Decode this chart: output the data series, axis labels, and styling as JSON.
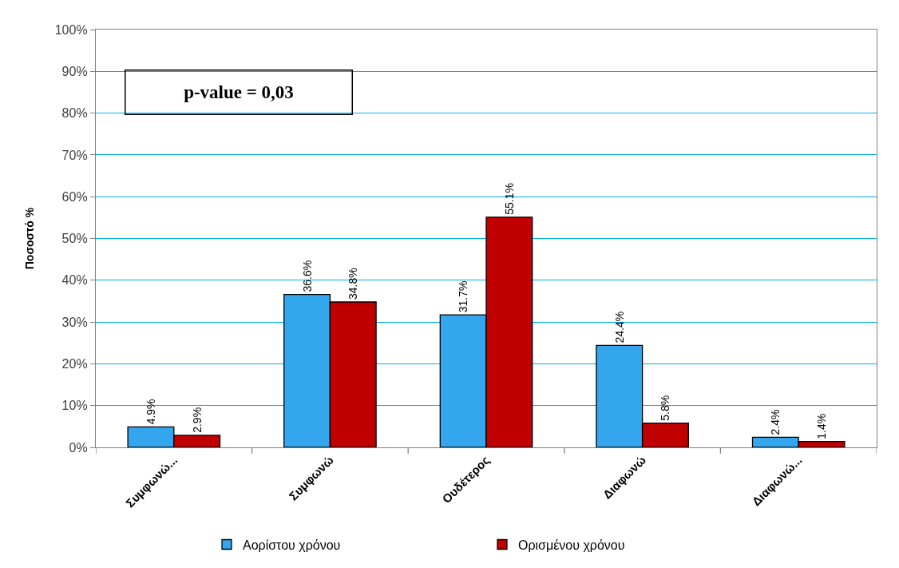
{
  "chart_data": {
    "type": "bar",
    "ylabel": "Ποσοστό %",
    "categories": [
      "Συμφωνώ...",
      "Συμφωνώ",
      "Ουδέτερος",
      "Διαφωνώ",
      "Διαφωνώ..."
    ],
    "series": [
      {
        "name": "Αορίστου χρόνου",
        "color": "#33a6ee",
        "values": [
          4.9,
          36.6,
          31.7,
          24.4,
          2.4
        ],
        "value_labels": [
          "4.9%",
          "36.6%",
          "31.7%",
          "24.4%",
          "2.4%"
        ]
      },
      {
        "name": "Ορισμένου χρόνου",
        "color": "#c00000",
        "values": [
          2.9,
          34.8,
          55.1,
          5.8,
          1.4
        ],
        "value_labels": [
          "2.9%",
          "34.8%",
          "55.1%",
          "5.8%",
          "1.4%"
        ]
      }
    ],
    "ylim": [
      0,
      100
    ],
    "yticks": [
      {
        "value": 0,
        "label": "0%"
      },
      {
        "value": 10,
        "label": "10%"
      },
      {
        "value": 20,
        "label": "20%"
      },
      {
        "value": 30,
        "label": "30%"
      },
      {
        "value": 40,
        "label": "40%"
      },
      {
        "value": 50,
        "label": "50%"
      },
      {
        "value": 60,
        "label": "60%"
      },
      {
        "value": 70,
        "label": "70%"
      },
      {
        "value": 80,
        "label": "80%"
      },
      {
        "value": 90,
        "label": "90%"
      },
      {
        "value": 100,
        "label": "100%"
      }
    ],
    "grid": "y",
    "legend": "bottom",
    "annotations": [
      "p-value = 0,03"
    ]
  }
}
